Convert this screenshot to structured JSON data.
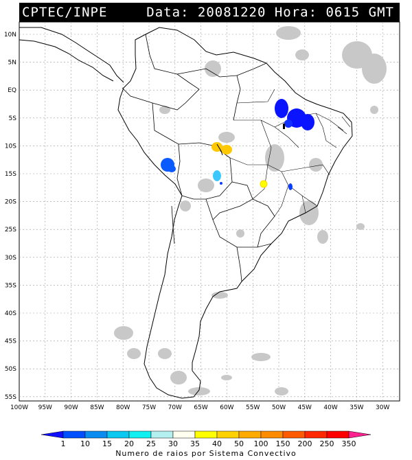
{
  "header": {
    "source": "CPTEC/INPE",
    "datetime": "Data: 20081220 Hora: 0615 GMT"
  },
  "map": {
    "lat_labels": [
      "10N",
      "5N",
      "EQ",
      "5S",
      "10S",
      "15S",
      "20S",
      "25S",
      "30S",
      "35S",
      "40S",
      "45S",
      "50S",
      "55S"
    ],
    "lon_labels": [
      "100W",
      "95W",
      "90W",
      "85W",
      "80W",
      "75W",
      "70W",
      "65W",
      "60W",
      "55W",
      "50W",
      "45W",
      "40W",
      "35W",
      "30W"
    ]
  },
  "legend": {
    "title": "Numero de raios por Sistema Convectivo",
    "values": [
      "1",
      "10",
      "15",
      "20",
      "25",
      "30",
      "35",
      "40",
      "50",
      "100",
      "150",
      "200",
      "250",
      "350"
    ],
    "colors": [
      "#1010ff",
      "#0050ff",
      "#0a8cf0",
      "#0ac8f0",
      "#10f0f0",
      "#b4f0f0",
      "#fffff0",
      "#ffff00",
      "#ffd200",
      "#ffaa00",
      "#ff8c00",
      "#ff5a00",
      "#ff2800",
      "#ff0000",
      "#ff2090"
    ]
  },
  "systems": [
    {
      "name": "northeast-brazil-cluster",
      "color": "#0a14ff"
    },
    {
      "name": "peru-cluster",
      "color": "#0a5aff"
    },
    {
      "name": "rondonia-cluster",
      "color": "#ffc800"
    },
    {
      "name": "mato-grosso-cluster",
      "color": "#3cc8ff"
    },
    {
      "name": "goias-cluster",
      "color": "#ffff00"
    },
    {
      "name": "minas-cluster",
      "color": "#0a3cff"
    }
  ]
}
